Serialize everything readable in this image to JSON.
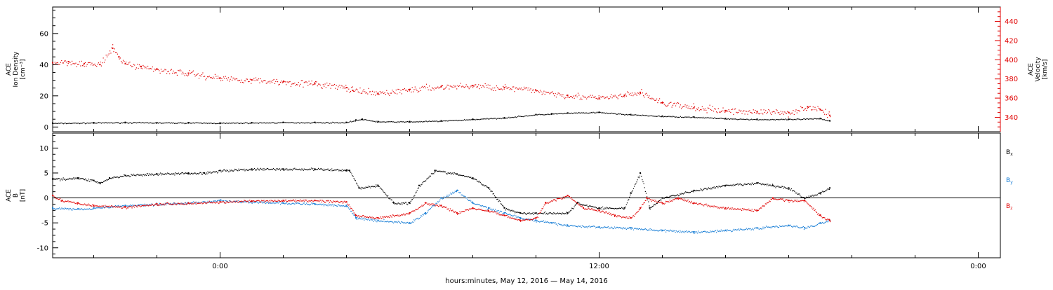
{
  "colors": {
    "black": "#000000",
    "red": "#e00000",
    "blue": "#1a7fd6"
  },
  "xlabel": "hours:minutes, May 12, 2016 — May 14, 2016",
  "x_ticks": [
    "0:00",
    "12:00",
    "0:00"
  ],
  "chart_data": [
    {
      "type": "scatter",
      "title": "",
      "ylabel_lines": [
        "ACE",
        "Ion Density",
        "[cm⁻³]"
      ],
      "y2label_lines": [
        "ACE",
        "Velocity",
        "[km/s]"
      ],
      "xlim_hours": [
        -5.3,
        24.7
      ],
      "ylim": [
        -3,
        77
      ],
      "y2lim": [
        325,
        455
      ],
      "yticks": [
        0,
        20,
        40,
        60
      ],
      "y2ticks": [
        340,
        360,
        380,
        400,
        420,
        440
      ],
      "series": [
        {
          "axis": "left",
          "color": "black",
          "x": [
            -5.3,
            -4,
            -3,
            -2,
            -1,
            0,
            1,
            2,
            3,
            4,
            4.3,
            4.5,
            5,
            6,
            7,
            8,
            9,
            10,
            10.5,
            11,
            12,
            13,
            14,
            15,
            16,
            17,
            18,
            19,
            19.3
          ],
          "values": [
            2.5,
            2.8,
            3.0,
            2.8,
            2.8,
            2.6,
            2.8,
            3.0,
            3.0,
            3.0,
            4.5,
            5.0,
            3.5,
            3.5,
            4.0,
            5.0,
            6.0,
            8.0,
            8.5,
            9.0,
            9.5,
            8.0,
            7.0,
            6.5,
            5.5,
            5.0,
            5.0,
            5.5,
            4.0
          ]
        },
        {
          "axis": "right",
          "color": "red",
          "x": [
            -5.3,
            -4.8,
            -4.3,
            -3.8,
            -3.4,
            -3.2,
            -3.0,
            -2.5,
            -2,
            -1,
            0,
            1,
            2,
            3,
            4,
            4.2,
            5,
            6,
            7,
            8,
            9,
            10,
            11,
            12,
            12.8,
            13.3,
            14,
            15,
            16,
            17,
            18,
            18.6,
            19,
            19.3
          ],
          "values": [
            397,
            398,
            396,
            395,
            412,
            403,
            396,
            393,
            390,
            386,
            381,
            379,
            377,
            375,
            371,
            368,
            365,
            369,
            372,
            373,
            371,
            368,
            363,
            360,
            363,
            366,
            355,
            350,
            347,
            346,
            345,
            351,
            348,
            342
          ]
        }
      ]
    },
    {
      "type": "scatter",
      "title": "",
      "ylabel_lines": [
        "ACE",
        "B",
        "[nT]"
      ],
      "xlim_hours": [
        -5.3,
        24.7
      ],
      "ylim": [
        -12,
        13
      ],
      "yticks": [
        -10,
        -5,
        0,
        5,
        10
      ],
      "zero_line": true,
      "series": [
        {
          "name": "Bx",
          "color": "black",
          "x": [
            -5.3,
            -4.5,
            -4,
            -3.8,
            -3.5,
            -3,
            -2,
            -1,
            -0.5,
            0,
            1,
            2,
            3,
            4,
            4.1,
            4.4,
            5,
            5.5,
            6,
            6.3,
            6.8,
            7.5,
            8,
            8.5,
            9,
            9.5,
            10,
            11,
            11.3,
            12,
            12.8,
            13,
            13.3,
            13.6,
            14,
            15,
            16,
            17,
            17.5,
            18,
            18.5,
            19,
            19.3
          ],
          "values": [
            3.8,
            4.0,
            3.5,
            3.0,
            4.0,
            4.5,
            4.8,
            5.0,
            5.0,
            5.5,
            5.8,
            5.8,
            5.8,
            5.6,
            5.5,
            2.0,
            2.5,
            -1.0,
            -1.0,
            2.5,
            5.5,
            4.8,
            4.0,
            2.0,
            -2.0,
            -3.0,
            -3.0,
            -3.0,
            -1.0,
            -2.0,
            -2.0,
            1.0,
            5.0,
            -2.0,
            0.0,
            1.5,
            2.5,
            3.0,
            2.5,
            2.0,
            0.0,
            1.0,
            2.0
          ]
        },
        {
          "name": "By",
          "color": "blue",
          "x": [
            -5.3,
            -4.5,
            -4,
            -3,
            -2,
            -1,
            0,
            1,
            2,
            3,
            4,
            4.3,
            5,
            6,
            6.5,
            7,
            7.5,
            8,
            8.5,
            9,
            9.5,
            10,
            10.5,
            11,
            12,
            13,
            14,
            15,
            16,
            17,
            18,
            18.5,
            19,
            19.3
          ],
          "values": [
            -2.0,
            -2.2,
            -2.0,
            -1.5,
            -1.2,
            -1.0,
            -0.5,
            -0.8,
            -1.0,
            -1.2,
            -1.5,
            -4.0,
            -4.5,
            -5.0,
            -3.0,
            0.0,
            1.5,
            -1.0,
            -2.0,
            -3.0,
            -4.0,
            -4.5,
            -5.0,
            -5.5,
            -5.8,
            -6.0,
            -6.5,
            -6.8,
            -6.5,
            -6.0,
            -5.5,
            -6.0,
            -5.0,
            -4.5
          ]
        },
        {
          "name": "Bz",
          "color": "red",
          "x": [
            -5.3,
            -5,
            -4.5,
            -4,
            -3,
            -2,
            -1,
            0,
            1,
            2,
            3,
            4,
            4.3,
            5,
            6,
            6.5,
            7,
            7.5,
            8,
            8.5,
            9,
            9.5,
            10,
            10.3,
            11,
            11.5,
            12,
            12.5,
            13,
            13.3,
            13.5,
            14,
            14.5,
            15,
            16,
            17,
            17.5,
            18,
            18.5,
            19,
            19.3
          ],
          "values": [
            0.5,
            -0.5,
            -1.0,
            -1.5,
            -1.8,
            -1.2,
            -1.0,
            -0.8,
            -0.6,
            -0.5,
            -0.5,
            -0.8,
            -3.5,
            -4.0,
            -3.0,
            -1.0,
            -1.5,
            -3.0,
            -2.0,
            -2.5,
            -3.5,
            -4.5,
            -4.0,
            -1.0,
            0.5,
            -2.0,
            -2.5,
            -3.5,
            -4.0,
            -2.0,
            0.0,
            -1.0,
            0.0,
            -1.0,
            -2.0,
            -2.5,
            0.0,
            -0.5,
            -0.5,
            -3.5,
            -4.5
          ]
        }
      ]
    }
  ]
}
